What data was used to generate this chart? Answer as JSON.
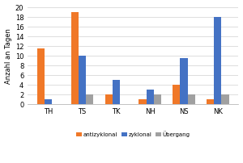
{
  "categories": [
    "TH",
    "TS",
    "TK",
    "NH",
    "NS",
    "NK"
  ],
  "series": {
    "antizyklonal": [
      11.5,
      19.0,
      2.0,
      1.0,
      4.0,
      1.0
    ],
    "zyklonal": [
      1.0,
      10.0,
      5.0,
      3.0,
      9.5,
      18.0
    ],
    "Uebergang": [
      0,
      2.0,
      0,
      2.0,
      2.0,
      2.0
    ]
  },
  "colors": {
    "antizyklonal": "#F07828",
    "zyklonal": "#4472C4",
    "Uebergang": "#A0A0A0"
  },
  "legend_labels": [
    "antizyklonal",
    "zyklonal",
    "Übergang"
  ],
  "ylabel": "Anzahl an Tagen",
  "ylim": [
    0,
    20
  ],
  "yticks": [
    0,
    2,
    4,
    6,
    8,
    10,
    12,
    14,
    16,
    18,
    20
  ],
  "plot_bg": "#FFFFFF",
  "fig_bg": "#FFFFFF",
  "grid_color": "#D8D8D8",
  "bar_width": 0.22
}
